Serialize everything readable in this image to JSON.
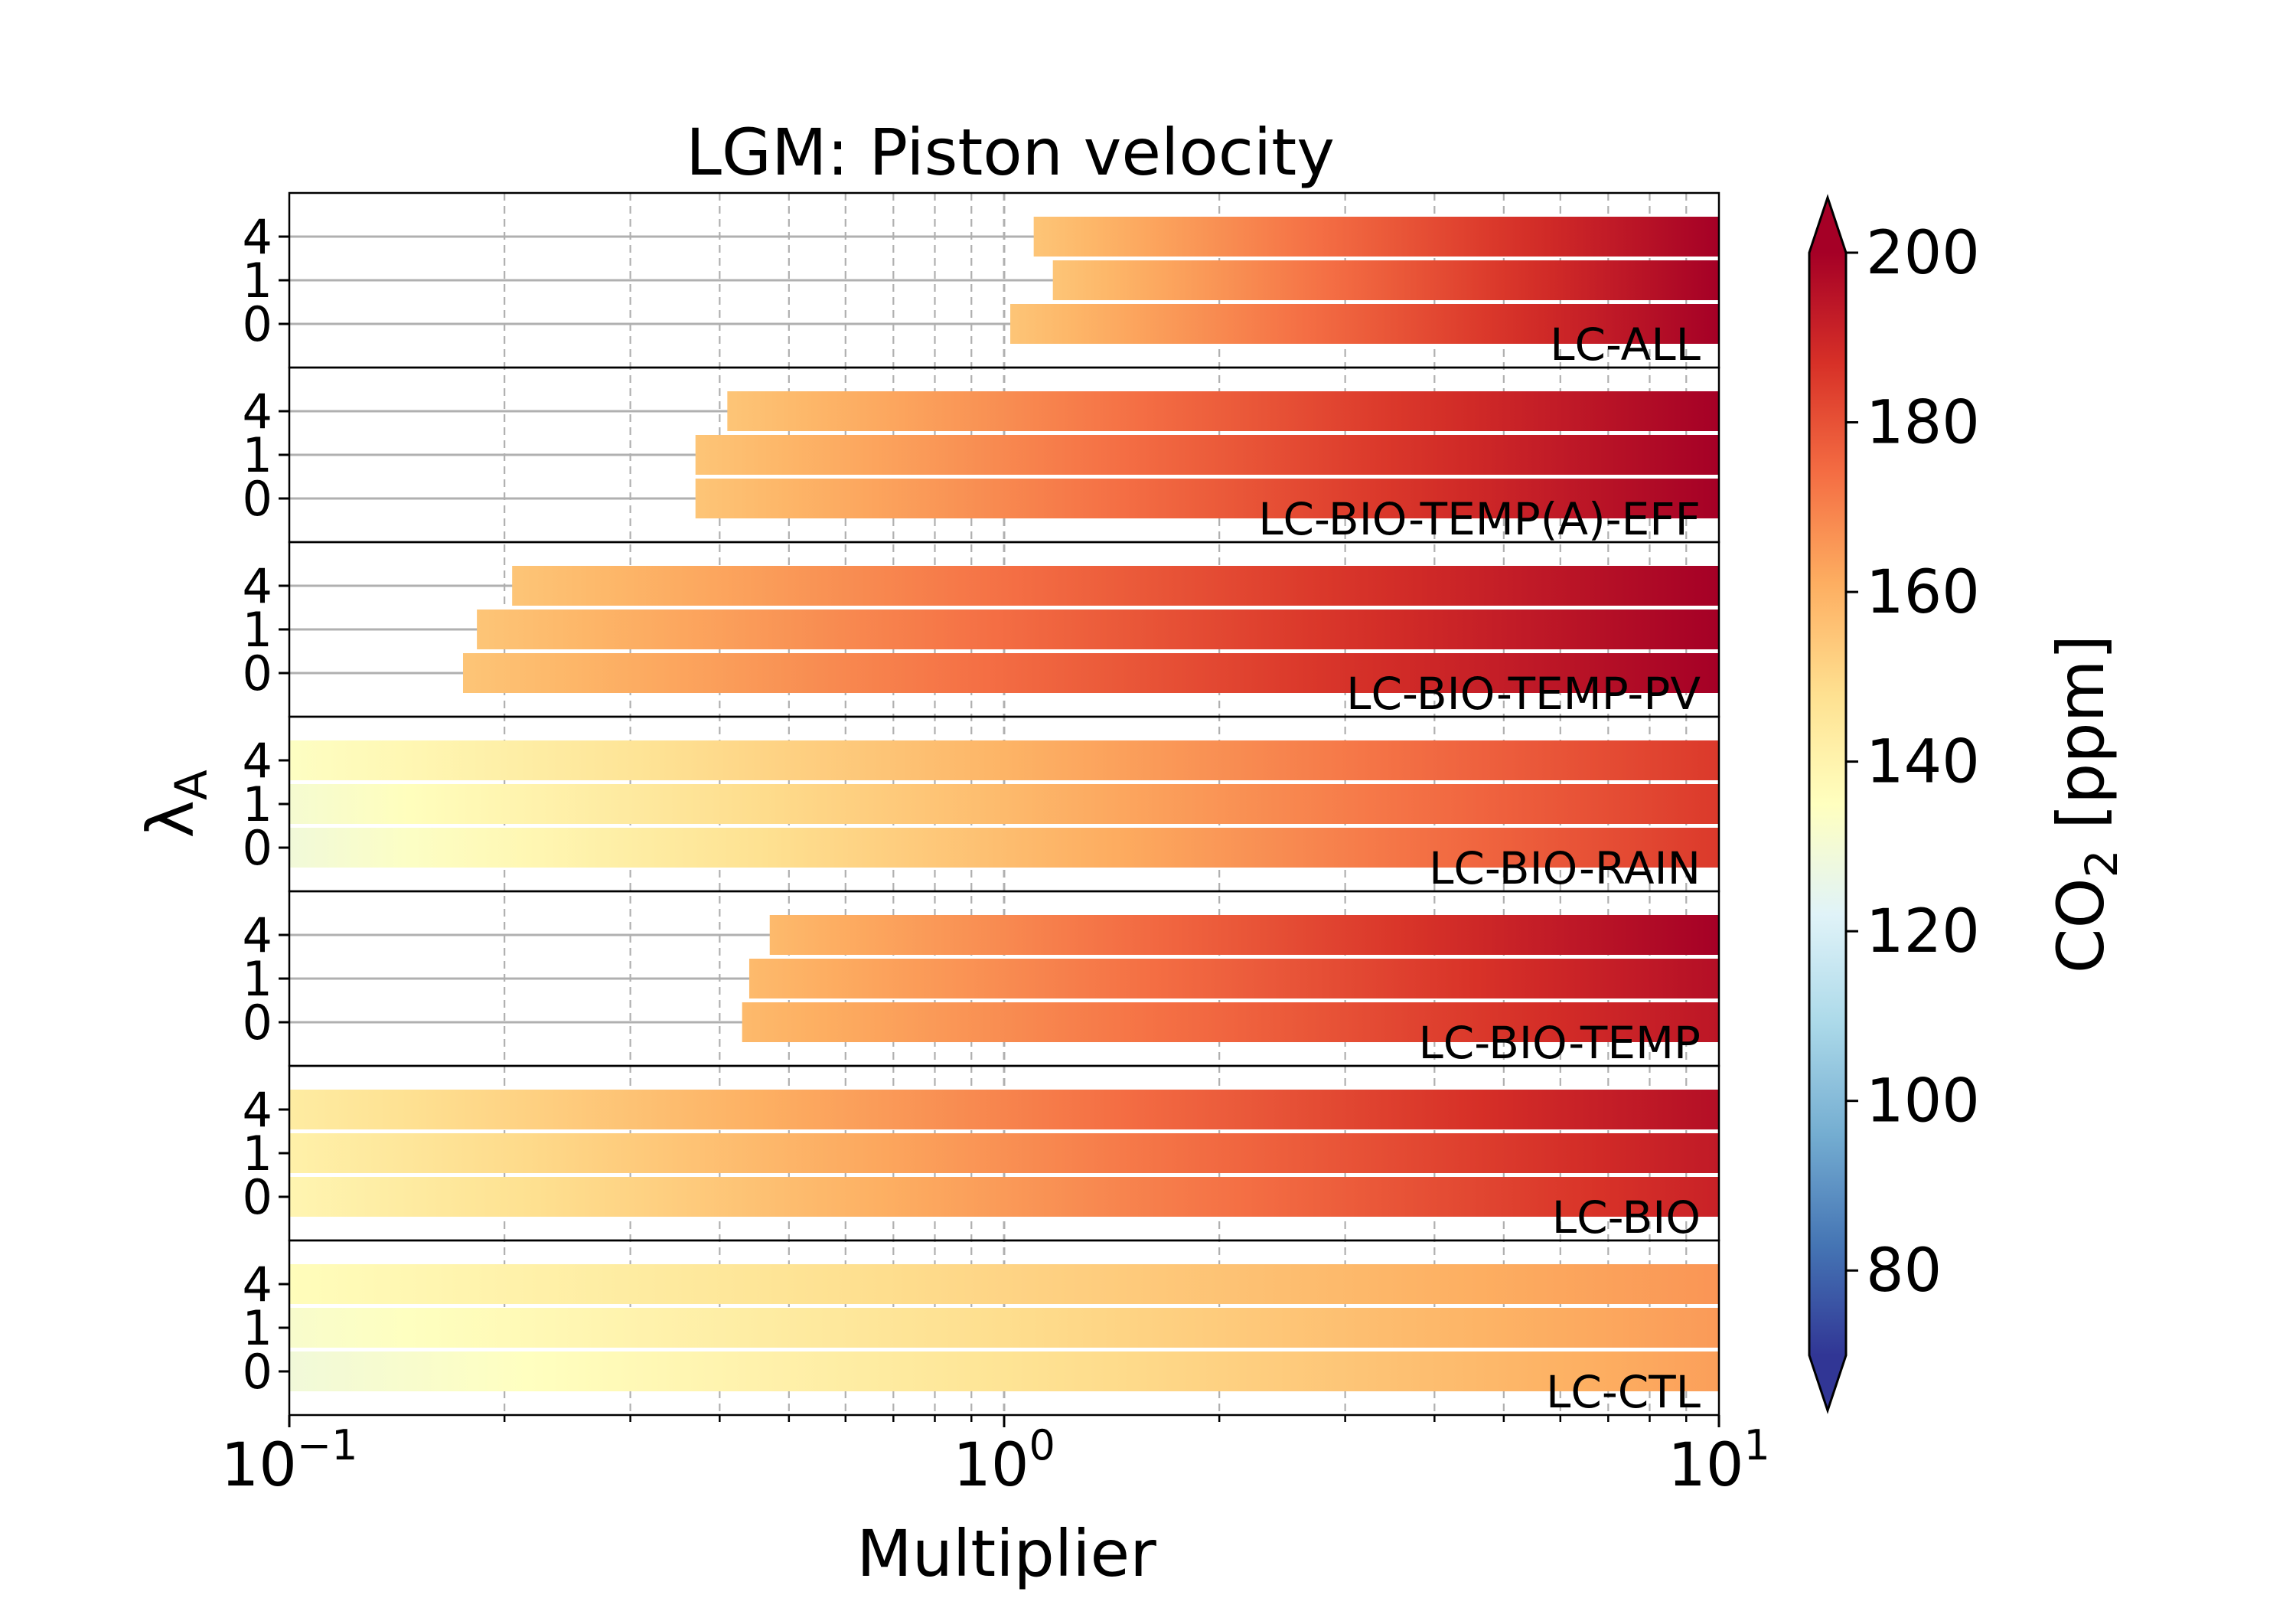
{
  "chart_data": {
    "type": "bar",
    "orientation": "horizontal",
    "title": "LGM: Piston velocity",
    "xlabel": "Multiplier",
    "ylabel_symbol": "λ",
    "ylabel_subscript": "A",
    "x_scale": "log",
    "xlim": [
      0.1,
      10
    ],
    "x_ticks": [
      {
        "base": "10",
        "exp": "−1",
        "value": 0.1
      },
      {
        "base": "10",
        "exp": "0",
        "value": 1
      },
      {
        "base": "10",
        "exp": "1",
        "value": 10
      }
    ],
    "grid": true,
    "colorbar": {
      "label_main": "CO",
      "label_sub": "2",
      "label_unit": " [ppm]",
      "range": [
        70,
        200
      ],
      "ticks": [
        "80",
        "100",
        "120",
        "140",
        "160",
        "180",
        "200"
      ],
      "extend": "both",
      "colormap": "RdYlBu_r"
    },
    "panels": [
      {
        "label": "LC-ALL",
        "rows": [
          {
            "lambda": "4",
            "start": 1.1,
            "co2": [
              155,
              200
            ]
          },
          {
            "lambda": "1",
            "start": 1.17,
            "co2": [
              155,
              200
            ]
          },
          {
            "lambda": "0",
            "start": 1.02,
            "co2": [
              155,
              200
            ]
          }
        ]
      },
      {
        "label": "LC-BIO-TEMP(A)-EFF",
        "rows": [
          {
            "lambda": "4",
            "start": 0.41,
            "co2": [
              155,
              200
            ]
          },
          {
            "lambda": "1",
            "start": 0.37,
            "co2": [
              155,
              200
            ]
          },
          {
            "lambda": "0",
            "start": 0.37,
            "co2": [
              155,
              200
            ]
          }
        ]
      },
      {
        "label": "LC-BIO-TEMP-PV",
        "rows": [
          {
            "lambda": "4",
            "start": 0.205,
            "co2": [
              155,
              200
            ]
          },
          {
            "lambda": "1",
            "start": 0.183,
            "co2": [
              155,
              200
            ]
          },
          {
            "lambda": "0",
            "start": 0.175,
            "co2": [
              155,
              200
            ]
          }
        ]
      },
      {
        "label": "LC-BIO-RAIN",
        "rows": [
          {
            "lambda": "4",
            "start": 0.1,
            "co2": [
              134,
              185
            ]
          },
          {
            "lambda": "1",
            "start": 0.1,
            "co2": [
              131,
              185
            ]
          },
          {
            "lambda": "0",
            "start": 0.1,
            "co2": [
              129,
              185
            ]
          }
        ]
      },
      {
        "label": "LC-BIO-TEMP",
        "rows": [
          {
            "lambda": "4",
            "start": 0.47,
            "co2": [
              158,
              200
            ]
          },
          {
            "lambda": "1",
            "start": 0.44,
            "co2": [
              158,
              196
            ]
          },
          {
            "lambda": "0",
            "start": 0.43,
            "co2": [
              158,
              194
            ]
          }
        ]
      },
      {
        "label": "LC-BIO",
        "rows": [
          {
            "lambda": "4",
            "start": 0.1,
            "co2": [
              143,
              196
            ]
          },
          {
            "lambda": "1",
            "start": 0.1,
            "co2": [
              141,
              193
            ]
          },
          {
            "lambda": "0",
            "start": 0.1,
            "co2": [
              139,
              191
            ]
          }
        ]
      },
      {
        "label": "LC-CTL",
        "rows": [
          {
            "lambda": "4",
            "start": 0.1,
            "co2": [
              136,
              166
            ]
          },
          {
            "lambda": "1",
            "start": 0.1,
            "co2": [
              132,
              165
            ]
          },
          {
            "lambda": "0",
            "start": 0.1,
            "co2": [
              129,
              164
            ]
          }
        ]
      }
    ]
  }
}
